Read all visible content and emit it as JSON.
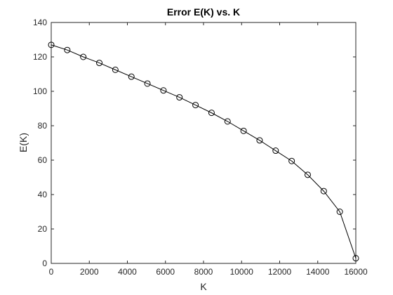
{
  "chart_data": {
    "type": "line",
    "title": "Error E(K) vs. K",
    "xlabel": "K",
    "ylabel": "E(K)",
    "xlim": [
      0,
      16000
    ],
    "ylim": [
      0,
      140
    ],
    "xticks": [
      0,
      2000,
      4000,
      6000,
      8000,
      10000,
      12000,
      14000,
      16000
    ],
    "yticks": [
      0,
      20,
      40,
      60,
      80,
      100,
      120,
      140
    ],
    "grid": false,
    "marker": "circle",
    "line_color": "#000000",
    "series": [
      {
        "x": [
          0,
          842,
          1684,
          2526,
          3368,
          4211,
          5053,
          5895,
          6737,
          7579,
          8421,
          9263,
          10105,
          10947,
          11789,
          12632,
          13474,
          14316,
          15158,
          16000
        ],
        "y": [
          127,
          124,
          120,
          116.5,
          112.5,
          108.5,
          104.5,
          100.5,
          96.5,
          92,
          87.5,
          82.5,
          77,
          71.5,
          65.5,
          59.5,
          51.5,
          42,
          30,
          3
        ]
      }
    ]
  }
}
